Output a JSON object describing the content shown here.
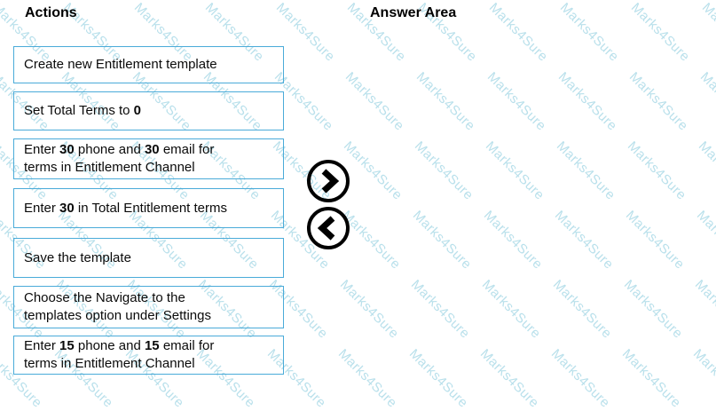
{
  "watermark": {
    "text": "Marks4Sure",
    "color": "rgba(128, 199, 219, 0.55)"
  },
  "headers": {
    "actions": "Actions",
    "answer_area": "Answer Area"
  },
  "actions": [
    {
      "parts": [
        {
          "t": "Create new Entitlement template"
        }
      ]
    },
    {
      "parts": [
        {
          "t": "Set Total Terms to "
        },
        {
          "t": "0",
          "b": true
        }
      ]
    },
    {
      "parts": [
        {
          "t": "Enter "
        },
        {
          "t": "30",
          "b": true
        },
        {
          "t": " phone and "
        },
        {
          "t": "30",
          "b": true
        },
        {
          "t": " email for"
        },
        {
          "br": true
        },
        {
          "t": "terms in Entitlement Channel"
        }
      ]
    },
    {
      "parts": [
        {
          "t": "Enter "
        },
        {
          "t": "30",
          "b": true
        },
        {
          "t": " in Total Entitlement terms"
        }
      ]
    },
    {
      "parts": [
        {
          "t": "Save the template"
        }
      ]
    },
    {
      "parts": [
        {
          "t": "Choose the Navigate to the"
        },
        {
          "br": true
        },
        {
          "t": "templates option under Settings"
        }
      ]
    },
    {
      "parts": [
        {
          "t": "Enter "
        },
        {
          "t": "15",
          "b": true
        },
        {
          "t": " phone and "
        },
        {
          "t": "15",
          "b": true
        },
        {
          "t": " email for"
        },
        {
          "br": true
        },
        {
          "t": "terms in Entitlement Channel"
        }
      ]
    }
  ],
  "controls": {
    "move_right_icon": "chevron-right",
    "move_left_icon": "chevron-left"
  },
  "colors": {
    "box_border": "#4aabd9",
    "text": "#0a0a0a",
    "arrow": "#000000",
    "background": "#ffffff"
  }
}
